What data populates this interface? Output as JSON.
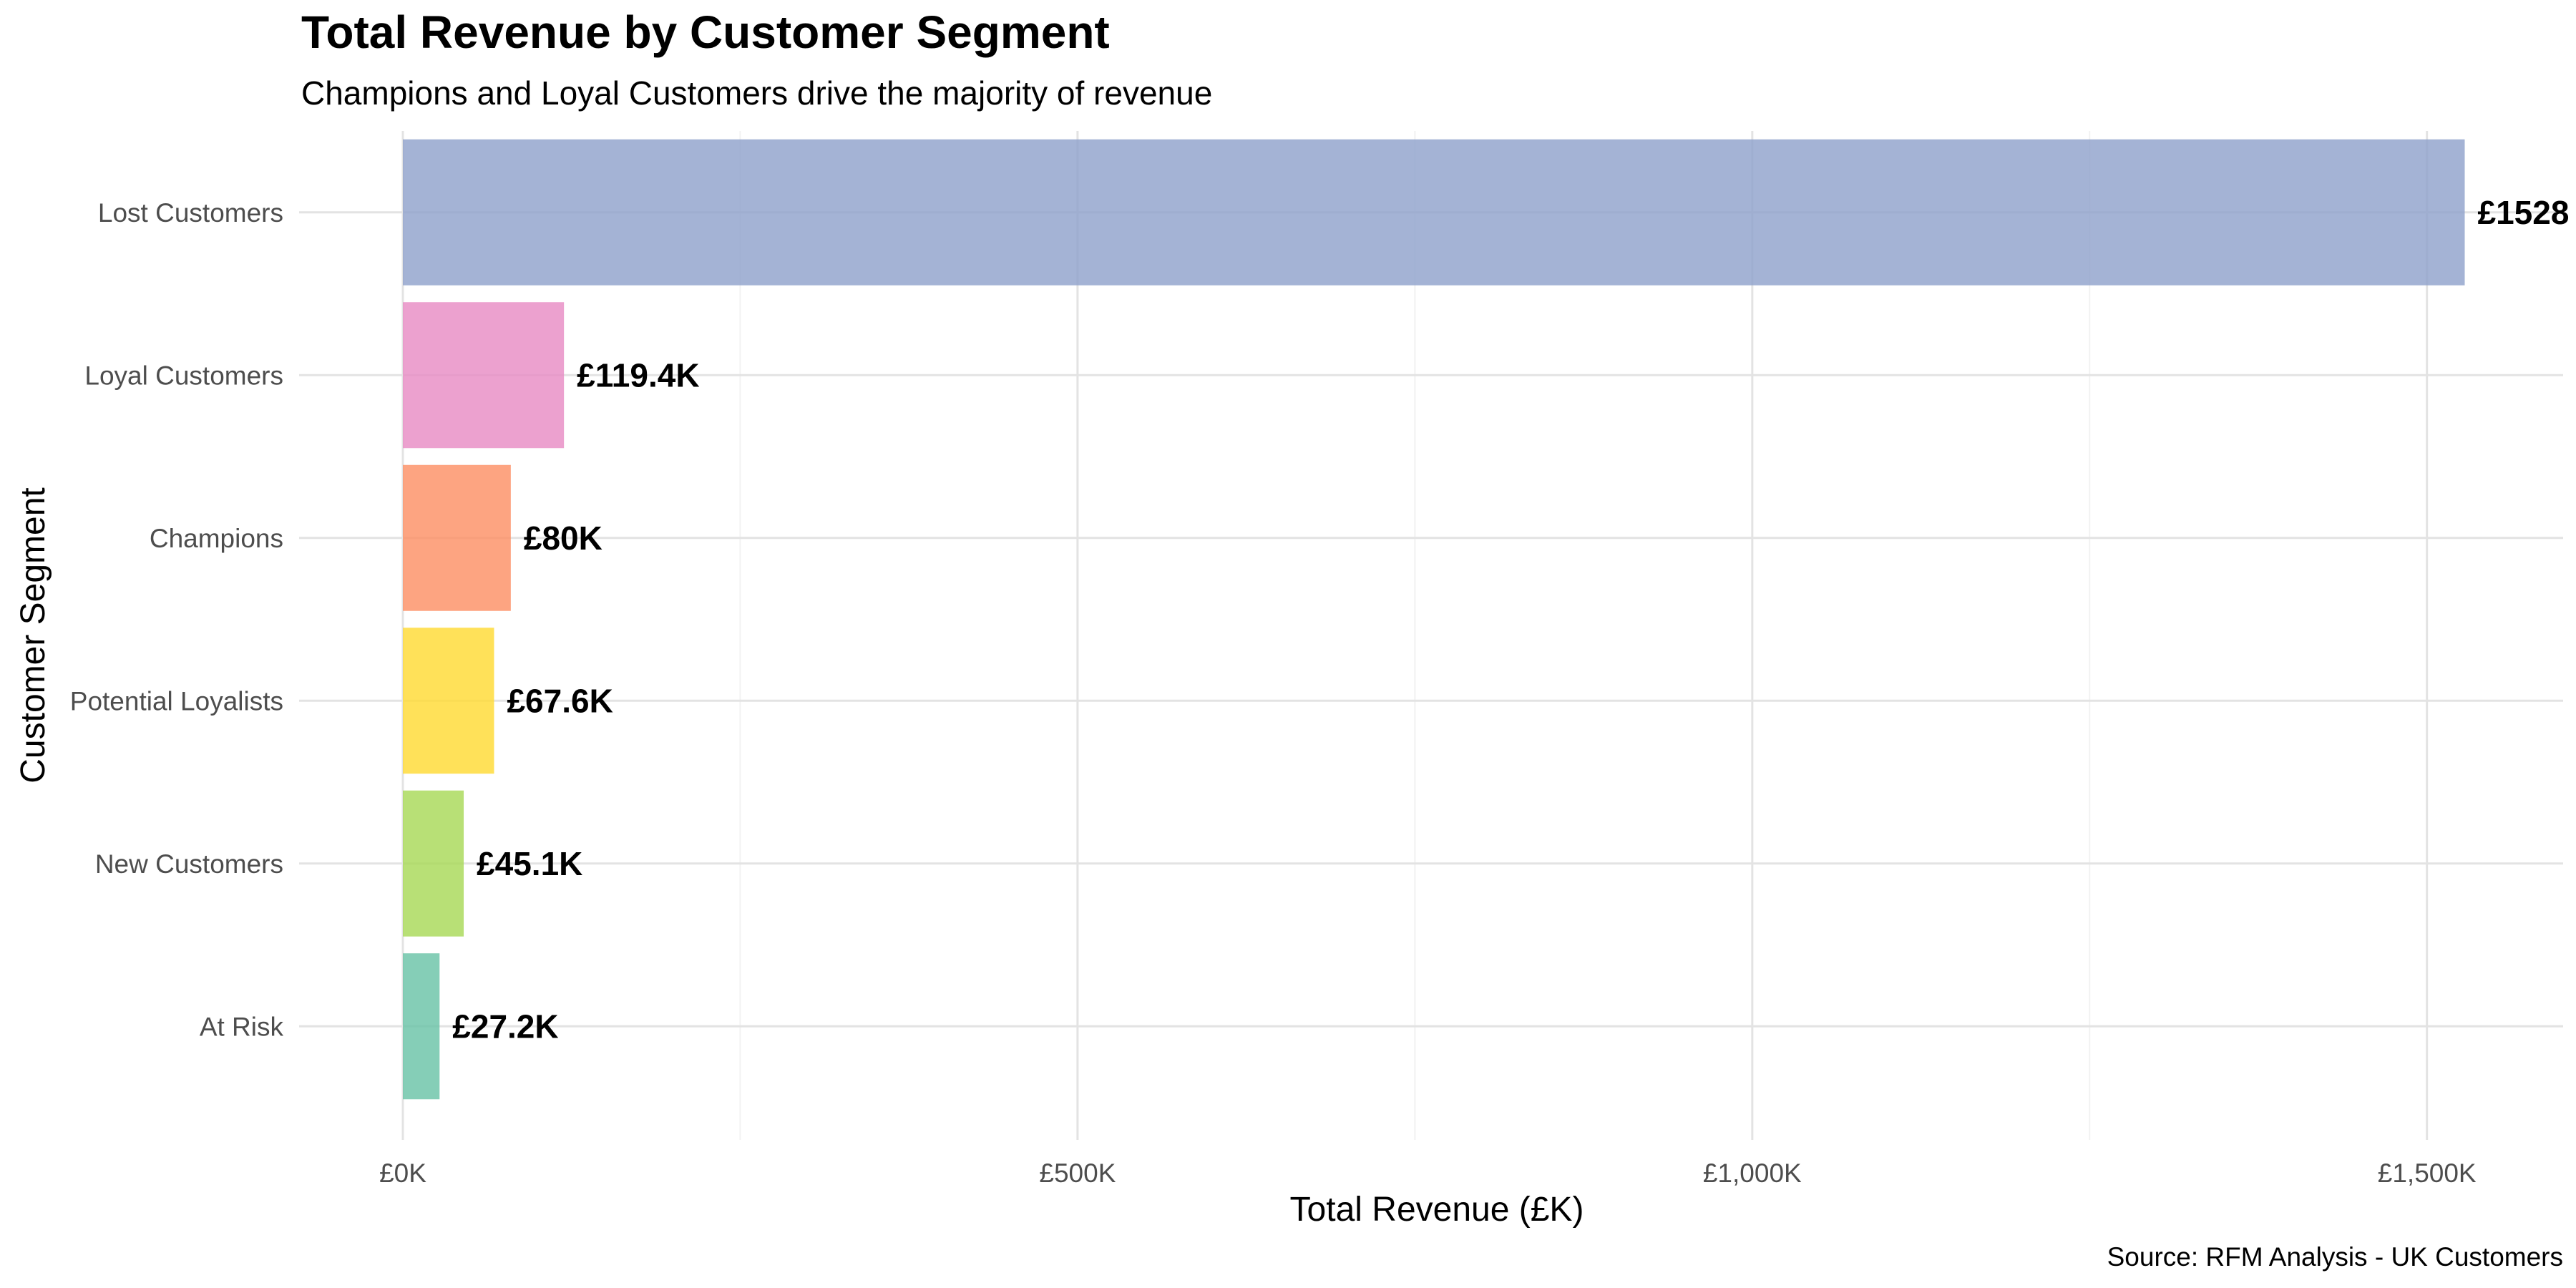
{
  "chart_data": {
    "type": "bar",
    "orientation": "horizontal",
    "title": "Total Revenue by Customer Segment",
    "subtitle": "Champions and Loyal Customers drive the majority of revenue",
    "xlabel": "Total Revenue (£K)",
    "ylabel": "Customer Segment",
    "caption": "Source: RFM Analysis - UK Customers",
    "categories": [
      "Lost Customers",
      "Loyal Customers",
      "Champions",
      "Potential Loyalists",
      "New Customers",
      "At Risk"
    ],
    "values": [
      1528,
      119.4,
      80,
      67.6,
      45.1,
      27.2
    ],
    "data_labels": [
      "£1528",
      "£119.4K",
      "£80K",
      "£67.6K",
      "£45.1K",
      "£27.2K"
    ],
    "colors": [
      "#8DA0CB",
      "#E78AC3",
      "#FC8D62",
      "#FFD92F",
      "#A6D854",
      "#66C2A5"
    ],
    "xlim": [
      0,
      1600
    ],
    "xticks": [
      0,
      500,
      1000,
      1500
    ],
    "xtick_labels": [
      "£0K",
      "£500K",
      "£1,000K",
      "£1,500K"
    ],
    "grid": true,
    "legend": "none"
  }
}
